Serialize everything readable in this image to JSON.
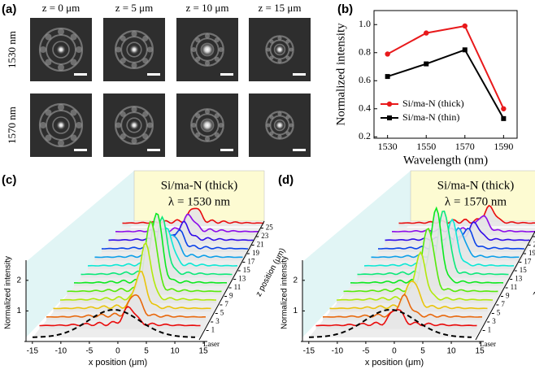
{
  "image_grid": {
    "label": "(a)",
    "columns": [
      "z = 0 μm",
      "z = 5 μm",
      "z = 10 μm",
      "z = 15 μm"
    ],
    "rows": [
      "1530 nm",
      "1570 nm"
    ]
  },
  "chart_data": [
    {
      "type": "line",
      "label": "(b)",
      "xlabel": "Wavelength (nm)",
      "ylabel": "Normalized intensity",
      "x": [
        1530,
        1550,
        1570,
        1590
      ],
      "xlim": [
        1523,
        1597
      ],
      "xticks": [
        1530,
        1550,
        1570,
        1590
      ],
      "ylim": [
        0.19,
        1.1
      ],
      "yticks": [
        0.2,
        0.4,
        0.6,
        0.8,
        {
          "value": 1,
          "label": "1.0"
        }
      ],
      "legend": "lower left",
      "series": [
        {
          "name": "Si/ma-N (thick)",
          "color": "#e8191b",
          "marker": "circle",
          "values": [
            0.79,
            0.94,
            0.99,
            0.4
          ]
        },
        {
          "name": "Si/ma-N (thin)",
          "color": "#000000",
          "marker": "square",
          "values": [
            0.63,
            0.72,
            0.82,
            0.33
          ]
        }
      ]
    },
    {
      "type": "waterfall",
      "label": "(c)",
      "annotation": [
        "Si/ma-N (thick)",
        "λ = 1530 nm"
      ],
      "xlabel": "x position (μm)",
      "ylabel": "Normalized intensity",
      "zlabel": "z position (μm)",
      "xlim": [
        -16.4,
        15.7
      ],
      "xticks": [
        -15,
        -10,
        -5,
        0,
        5,
        10,
        15
      ],
      "ylim": [
        0,
        2.66
      ],
      "yticks": [
        1,
        2
      ],
      "reference_label": "Laser",
      "zticks": [
        1,
        3,
        5,
        7,
        9,
        11,
        13,
        15,
        17,
        19,
        21,
        23,
        25
      ]
    },
    {
      "type": "waterfall",
      "label": "(d)",
      "annotation": [
        "Si/ma-N (thick)",
        "λ = 1570 nm"
      ],
      "xlabel": "x position (μm)",
      "ylabel": "Normalized intensity",
      "zlabel": "z position (μm)",
      "xlim": [
        -16.4,
        15.7
      ],
      "xticks": [
        -15,
        -10,
        -5,
        0,
        5,
        10,
        15
      ],
      "ylim": [
        0,
        2.66
      ],
      "yticks": [
        1,
        2
      ],
      "reference_label": "Laser",
      "zticks": [
        1,
        3,
        5,
        7,
        9,
        11,
        13,
        15,
        17,
        19,
        21,
        23,
        25
      ]
    }
  ]
}
